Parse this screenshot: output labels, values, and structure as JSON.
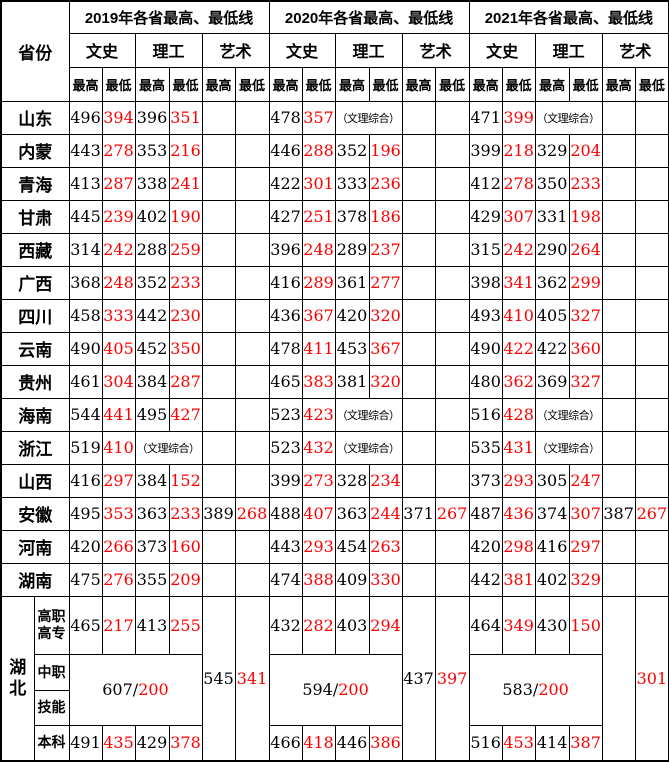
{
  "header": {
    "province_label": "省份",
    "year_groups": [
      "2019年各省最高、最低线",
      "2020年各省最高、最低线",
      "2021年各省最高、最低线"
    ],
    "categories": [
      "文史",
      "理工",
      "艺术"
    ],
    "sub_headers": [
      "最高",
      "最低"
    ]
  },
  "colors": {
    "max_score": "#000000",
    "min_score": "#ff0000",
    "border": "#000000",
    "background": "#ffffff"
  },
  "note_text": "（文理综合）",
  "rows": [
    {
      "label": "山东",
      "cells": [
        {
          "v": "496"
        },
        {
          "v": "394",
          "m": 1
        },
        {
          "v": "396"
        },
        {
          "v": "351",
          "m": 1
        },
        {
          "v": ""
        },
        {
          "v": ""
        },
        {
          "v": "478"
        },
        {
          "v": "357",
          "m": 1
        },
        {
          "v": "（文理综合）",
          "s": 2,
          "n": 1
        },
        {
          "v": ""
        },
        {
          "v": ""
        },
        {
          "v": "471"
        },
        {
          "v": "399",
          "m": 1
        },
        {
          "v": "（文理综合）",
          "s": 2,
          "n": 1
        },
        {
          "v": ""
        },
        {
          "v": ""
        }
      ]
    },
    {
      "label": "内蒙",
      "cells": [
        {
          "v": "443"
        },
        {
          "v": "278",
          "m": 1
        },
        {
          "v": "353"
        },
        {
          "v": "216",
          "m": 1
        },
        {
          "v": ""
        },
        {
          "v": ""
        },
        {
          "v": "446"
        },
        {
          "v": "288",
          "m": 1
        },
        {
          "v": "352"
        },
        {
          "v": "196",
          "m": 1
        },
        {
          "v": ""
        },
        {
          "v": ""
        },
        {
          "v": "399"
        },
        {
          "v": "218",
          "m": 1
        },
        {
          "v": "329"
        },
        {
          "v": "204",
          "m": 1
        },
        {
          "v": ""
        },
        {
          "v": ""
        }
      ]
    },
    {
      "label": "青海",
      "cells": [
        {
          "v": "413"
        },
        {
          "v": "287",
          "m": 1
        },
        {
          "v": "338"
        },
        {
          "v": "241",
          "m": 1
        },
        {
          "v": ""
        },
        {
          "v": ""
        },
        {
          "v": "422"
        },
        {
          "v": "301",
          "m": 1
        },
        {
          "v": "333"
        },
        {
          "v": "236",
          "m": 1
        },
        {
          "v": ""
        },
        {
          "v": ""
        },
        {
          "v": "412"
        },
        {
          "v": "278",
          "m": 1
        },
        {
          "v": "350"
        },
        {
          "v": "233",
          "m": 1
        },
        {
          "v": ""
        },
        {
          "v": ""
        }
      ]
    },
    {
      "label": "甘肃",
      "cells": [
        {
          "v": "445"
        },
        {
          "v": "239",
          "m": 1
        },
        {
          "v": "402"
        },
        {
          "v": "190",
          "m": 1
        },
        {
          "v": ""
        },
        {
          "v": ""
        },
        {
          "v": "427"
        },
        {
          "v": "251",
          "m": 1
        },
        {
          "v": "378"
        },
        {
          "v": "186",
          "m": 1
        },
        {
          "v": ""
        },
        {
          "v": ""
        },
        {
          "v": "429"
        },
        {
          "v": "307",
          "m": 1
        },
        {
          "v": "331"
        },
        {
          "v": "198",
          "m": 1
        },
        {
          "v": ""
        },
        {
          "v": ""
        }
      ]
    },
    {
      "label": "西藏",
      "cells": [
        {
          "v": "314"
        },
        {
          "v": "242",
          "m": 1
        },
        {
          "v": "288"
        },
        {
          "v": "259",
          "m": 1
        },
        {
          "v": ""
        },
        {
          "v": ""
        },
        {
          "v": "396"
        },
        {
          "v": "248",
          "m": 1
        },
        {
          "v": "289"
        },
        {
          "v": "237",
          "m": 1
        },
        {
          "v": ""
        },
        {
          "v": ""
        },
        {
          "v": "315"
        },
        {
          "v": "242",
          "m": 1
        },
        {
          "v": "290"
        },
        {
          "v": "264",
          "m": 1
        },
        {
          "v": ""
        },
        {
          "v": ""
        }
      ]
    },
    {
      "label": "广西",
      "cells": [
        {
          "v": "368"
        },
        {
          "v": "248",
          "m": 1
        },
        {
          "v": "352"
        },
        {
          "v": "233",
          "m": 1
        },
        {
          "v": ""
        },
        {
          "v": ""
        },
        {
          "v": "416"
        },
        {
          "v": "289",
          "m": 1
        },
        {
          "v": "361"
        },
        {
          "v": "277",
          "m": 1
        },
        {
          "v": ""
        },
        {
          "v": ""
        },
        {
          "v": "398"
        },
        {
          "v": "341",
          "m": 1
        },
        {
          "v": "362"
        },
        {
          "v": "299",
          "m": 1
        },
        {
          "v": ""
        },
        {
          "v": ""
        }
      ]
    },
    {
      "label": "四川",
      "cells": [
        {
          "v": "458"
        },
        {
          "v": "333",
          "m": 1
        },
        {
          "v": "442"
        },
        {
          "v": "230",
          "m": 1
        },
        {
          "v": ""
        },
        {
          "v": ""
        },
        {
          "v": "436"
        },
        {
          "v": "367",
          "m": 1
        },
        {
          "v": "420"
        },
        {
          "v": "320",
          "m": 1
        },
        {
          "v": ""
        },
        {
          "v": ""
        },
        {
          "v": "493"
        },
        {
          "v": "410",
          "m": 1
        },
        {
          "v": "405"
        },
        {
          "v": "327",
          "m": 1
        },
        {
          "v": ""
        },
        {
          "v": ""
        }
      ]
    },
    {
      "label": "云南",
      "cells": [
        {
          "v": "490"
        },
        {
          "v": "405",
          "m": 1
        },
        {
          "v": "452"
        },
        {
          "v": "350",
          "m": 1
        },
        {
          "v": ""
        },
        {
          "v": ""
        },
        {
          "v": "478"
        },
        {
          "v": "411",
          "m": 1
        },
        {
          "v": "453"
        },
        {
          "v": "367",
          "m": 1
        },
        {
          "v": ""
        },
        {
          "v": ""
        },
        {
          "v": "490"
        },
        {
          "v": "422",
          "m": 1
        },
        {
          "v": "422"
        },
        {
          "v": "360",
          "m": 1
        },
        {
          "v": ""
        },
        {
          "v": ""
        }
      ]
    },
    {
      "label": "贵州",
      "cells": [
        {
          "v": "461"
        },
        {
          "v": "304",
          "m": 1
        },
        {
          "v": "384"
        },
        {
          "v": "287",
          "m": 1
        },
        {
          "v": ""
        },
        {
          "v": ""
        },
        {
          "v": "465"
        },
        {
          "v": "383",
          "m": 1
        },
        {
          "v": "381"
        },
        {
          "v": "320",
          "m": 1
        },
        {
          "v": ""
        },
        {
          "v": ""
        },
        {
          "v": "480"
        },
        {
          "v": "362",
          "m": 1
        },
        {
          "v": "369"
        },
        {
          "v": "327",
          "m": 1
        },
        {
          "v": ""
        },
        {
          "v": ""
        }
      ]
    },
    {
      "label": "海南",
      "cells": [
        {
          "v": "544"
        },
        {
          "v": "441",
          "m": 1
        },
        {
          "v": "495"
        },
        {
          "v": "427",
          "m": 1
        },
        {
          "v": ""
        },
        {
          "v": ""
        },
        {
          "v": "523"
        },
        {
          "v": "423",
          "m": 1
        },
        {
          "v": "（文理综合）",
          "s": 2,
          "n": 1
        },
        {
          "v": ""
        },
        {
          "v": ""
        },
        {
          "v": "516"
        },
        {
          "v": "428",
          "m": 1
        },
        {
          "v": "（文理综合）",
          "s": 2,
          "n": 1
        },
        {
          "v": ""
        },
        {
          "v": ""
        }
      ]
    },
    {
      "label": "浙江",
      "cells": [
        {
          "v": "519"
        },
        {
          "v": "410",
          "m": 1
        },
        {
          "v": "（文理综合）",
          "s": 2,
          "n": 1
        },
        {
          "v": ""
        },
        {
          "v": ""
        },
        {
          "v": "523"
        },
        {
          "v": "432",
          "m": 1
        },
        {
          "v": "（文理综合）",
          "s": 2,
          "n": 1
        },
        {
          "v": ""
        },
        {
          "v": ""
        },
        {
          "v": "535"
        },
        {
          "v": "431",
          "m": 1
        },
        {
          "v": "（文理综合）",
          "s": 2,
          "n": 1
        },
        {
          "v": ""
        },
        {
          "v": ""
        }
      ]
    },
    {
      "label": "山西",
      "cells": [
        {
          "v": "416"
        },
        {
          "v": "297",
          "m": 1
        },
        {
          "v": "384"
        },
        {
          "v": "152",
          "m": 1
        },
        {
          "v": ""
        },
        {
          "v": ""
        },
        {
          "v": "399"
        },
        {
          "v": "273",
          "m": 1
        },
        {
          "v": "328"
        },
        {
          "v": "234",
          "m": 1
        },
        {
          "v": ""
        },
        {
          "v": ""
        },
        {
          "v": "373"
        },
        {
          "v": "293",
          "m": 1
        },
        {
          "v": "305"
        },
        {
          "v": "247",
          "m": 1
        },
        {
          "v": ""
        },
        {
          "v": ""
        }
      ]
    },
    {
      "label": "安徽",
      "cells": [
        {
          "v": "495"
        },
        {
          "v": "353",
          "m": 1
        },
        {
          "v": "363"
        },
        {
          "v": "233",
          "m": 1
        },
        {
          "v": "389"
        },
        {
          "v": "268",
          "m": 1
        },
        {
          "v": "488"
        },
        {
          "v": "407",
          "m": 1
        },
        {
          "v": "363"
        },
        {
          "v": "244",
          "m": 1
        },
        {
          "v": "371"
        },
        {
          "v": "267",
          "m": 1
        },
        {
          "v": "487"
        },
        {
          "v": "436",
          "m": 1
        },
        {
          "v": "374"
        },
        {
          "v": "307",
          "m": 1
        },
        {
          "v": "387"
        },
        {
          "v": "267",
          "m": 1
        }
      ]
    },
    {
      "label": "河南",
      "cells": [
        {
          "v": "420"
        },
        {
          "v": "266",
          "m": 1
        },
        {
          "v": "373"
        },
        {
          "v": "160",
          "m": 1
        },
        {
          "v": ""
        },
        {
          "v": ""
        },
        {
          "v": "443"
        },
        {
          "v": "293",
          "m": 1
        },
        {
          "v": "454"
        },
        {
          "v": "263",
          "m": 1
        },
        {
          "v": ""
        },
        {
          "v": ""
        },
        {
          "v": "420"
        },
        {
          "v": "298",
          "m": 1
        },
        {
          "v": "416"
        },
        {
          "v": "297",
          "m": 1
        },
        {
          "v": ""
        },
        {
          "v": ""
        }
      ]
    },
    {
      "label": "湖南",
      "cells": [
        {
          "v": "475"
        },
        {
          "v": "276",
          "m": 1
        },
        {
          "v": "355"
        },
        {
          "v": "209",
          "m": 1
        },
        {
          "v": ""
        },
        {
          "v": ""
        },
        {
          "v": "474"
        },
        {
          "v": "388",
          "m": 1
        },
        {
          "v": "409"
        },
        {
          "v": "330",
          "m": 1
        },
        {
          "v": ""
        },
        {
          "v": ""
        },
        {
          "v": "442"
        },
        {
          "v": "381",
          "m": 1
        },
        {
          "v": "402"
        },
        {
          "v": "329",
          "m": 1
        },
        {
          "v": ""
        },
        {
          "v": ""
        }
      ]
    }
  ],
  "hubei_block": {
    "province": "湖北",
    "sub_rows": [
      {
        "label": "高职高专",
        "cells": [
          {
            "v": "465"
          },
          {
            "v": "217",
            "m": 1
          },
          {
            "v": "413"
          },
          {
            "v": "255",
            "m": 1
          },
          {
            "v": "545",
            "r": 4
          },
          {
            "v": "341",
            "m": 1,
            "r": 4
          },
          {
            "v": "432"
          },
          {
            "v": "282",
            "m": 1
          },
          {
            "v": "403"
          },
          {
            "v": "294",
            "m": 1
          },
          {
            "v": "437",
            "r": 4
          },
          {
            "v": "397",
            "m": 1,
            "r": 4
          },
          {
            "v": "464"
          },
          {
            "v": "349",
            "m": 1
          },
          {
            "v": "430"
          },
          {
            "v": "150",
            "m": 1
          },
          {
            "v": "",
            "r": 4
          },
          {
            "v": "301",
            "m": 1,
            "r": 4
          }
        ]
      },
      {
        "label": "中职",
        "cells": [
          {
            "v": "607/200",
            "s": 4,
            "r": 2,
            "x": 1
          },
          {
            "v": "594/200",
            "s": 4,
            "r": 2,
            "x": 1
          },
          {
            "v": "583/200",
            "s": 4,
            "r": 2,
            "x": 1
          }
        ]
      },
      {
        "label": "技能",
        "cells": []
      },
      {
        "label": "本科",
        "cells": [
          {
            "v": "491"
          },
          {
            "v": "435",
            "m": 1
          },
          {
            "v": "429"
          },
          {
            "v": "378",
            "m": 1
          },
          {
            "v": "466"
          },
          {
            "v": "418",
            "m": 1
          },
          {
            "v": "446"
          },
          {
            "v": "386",
            "m": 1
          },
          {
            "v": "516"
          },
          {
            "v": "453",
            "m": 1
          },
          {
            "v": "414"
          },
          {
            "v": "387",
            "m": 1
          }
        ]
      }
    ]
  }
}
